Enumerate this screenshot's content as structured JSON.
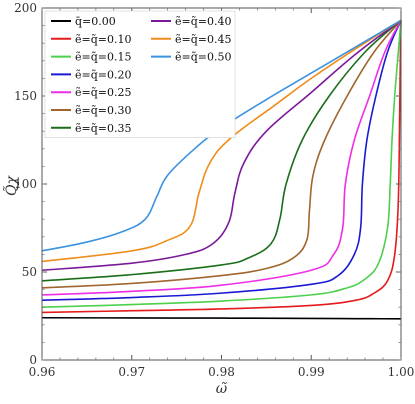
{
  "chart_data": {
    "type": "line",
    "xlabel": "ω̃",
    "ylabel": "Q̃χ",
    "xlim": [
      0.96,
      1.0
    ],
    "ylim": [
      0,
      200
    ],
    "xticks": [
      "0.96",
      "0.97",
      "0.98",
      "0.99",
      "1.00"
    ],
    "yticks": [
      "0",
      "50",
      "100",
      "150",
      "200"
    ],
    "grid": false,
    "legend_position": "top-left",
    "series": [
      {
        "name": "q̄=0.00",
        "color": "#000000",
        "points": [
          [
            0.96,
            24
          ],
          [
            0.97,
            23.9
          ],
          [
            0.98,
            23.8
          ],
          [
            0.99,
            23.6
          ],
          [
            0.995,
            23.5
          ],
          [
            1.0,
            23.4
          ]
        ]
      },
      {
        "name": "ẽ=q̃=0.10",
        "color": "#e41a1c",
        "points": [
          [
            0.96,
            27
          ],
          [
            0.97,
            28
          ],
          [
            0.98,
            29
          ],
          [
            0.99,
            31
          ],
          [
            0.995,
            34
          ],
          [
            0.997,
            38
          ],
          [
            0.9985,
            45
          ],
          [
            0.9993,
            60
          ],
          [
            0.9997,
            90
          ],
          [
            0.99985,
            140
          ],
          [
            0.99995,
            180
          ],
          [
            1.0,
            193
          ]
        ]
      },
      {
        "name": "ẽ=q̃=0.15",
        "color": "#4dd04d",
        "points": [
          [
            0.96,
            30
          ],
          [
            0.97,
            31.5
          ],
          [
            0.98,
            33.5
          ],
          [
            0.99,
            37
          ],
          [
            0.994,
            41
          ],
          [
            0.996,
            46
          ],
          [
            0.9975,
            55
          ],
          [
            0.9985,
            75
          ],
          [
            0.9988,
            100
          ],
          [
            0.999,
            125
          ],
          [
            0.9993,
            150
          ],
          [
            0.9997,
            175
          ],
          [
            1.0,
            193
          ]
        ]
      },
      {
        "name": "ẽ=q̃=0.20",
        "color": "#1a1ad4",
        "points": [
          [
            0.96,
            34
          ],
          [
            0.97,
            35.5
          ],
          [
            0.98,
            38
          ],
          [
            0.99,
            43
          ],
          [
            0.993,
            48
          ],
          [
            0.9948,
            60
          ],
          [
            0.9955,
            75
          ],
          [
            0.9957,
            100
          ],
          [
            0.9962,
            125
          ],
          [
            0.9972,
            150
          ],
          [
            0.9985,
            175
          ],
          [
            1.0,
            193
          ]
        ]
      },
      {
        "name": "ẽ=q̃=0.25",
        "color": "#ee2ee6",
        "points": [
          [
            0.96,
            37
          ],
          [
            0.97,
            39
          ],
          [
            0.98,
            42.5
          ],
          [
            0.99,
            51
          ],
          [
            0.9925,
            60
          ],
          [
            0.9935,
            75
          ],
          [
            0.9938,
            100
          ],
          [
            0.9948,
            125
          ],
          [
            0.9965,
            150
          ],
          [
            0.9982,
            175
          ],
          [
            1.0,
            193
          ]
        ]
      },
      {
        "name": "ẽ=q̃=0.30",
        "color": "#a0662e",
        "points": [
          [
            0.96,
            41
          ],
          [
            0.97,
            43.5
          ],
          [
            0.98,
            48
          ],
          [
            0.985,
            52
          ],
          [
            0.988,
            58
          ],
          [
            0.9895,
            68
          ],
          [
            0.9898,
            85
          ],
          [
            0.9902,
            105
          ],
          [
            0.9915,
            125
          ],
          [
            0.994,
            150
          ],
          [
            0.997,
            175
          ],
          [
            1.0,
            193
          ]
        ]
      },
      {
        "name": "ẽ=q̃=0.35",
        "color": "#1a6e1a",
        "points": [
          [
            0.96,
            45
          ],
          [
            0.97,
            48.5
          ],
          [
            0.98,
            54
          ],
          [
            0.983,
            58
          ],
          [
            0.9855,
            66
          ],
          [
            0.9865,
            80
          ],
          [
            0.9872,
            100
          ],
          [
            0.989,
            125
          ],
          [
            0.992,
            150
          ],
          [
            0.996,
            175
          ],
          [
            1.0,
            193
          ]
        ]
      },
      {
        "name": "ẽ=q̃=0.40",
        "color": "#7a1a9a",
        "points": [
          [
            0.96,
            51
          ],
          [
            0.97,
            55
          ],
          [
            0.976,
            60
          ],
          [
            0.979,
            66
          ],
          [
            0.9808,
            78
          ],
          [
            0.9815,
            95
          ],
          [
            0.9825,
            112
          ],
          [
            0.985,
            130
          ],
          [
            0.99,
            152
          ],
          [
            0.995,
            174
          ],
          [
            1.0,
            193
          ]
        ]
      },
      {
        "name": "ẽ=q̃=0.45",
        "color": "#f08c1a",
        "points": [
          [
            0.96,
            56
          ],
          [
            0.97,
            62
          ],
          [
            0.974,
            68
          ],
          [
            0.9765,
            76
          ],
          [
            0.9775,
            95
          ],
          [
            0.9787,
            112
          ],
          [
            0.981,
            126
          ],
          [
            0.986,
            145
          ],
          [
            0.99,
            160
          ],
          [
            0.995,
            177
          ],
          [
            1.0,
            193
          ]
        ]
      },
      {
        "name": "ẽ=q̃=0.50",
        "color": "#3a92e0",
        "points": [
          [
            0.96,
            62
          ],
          [
            0.965,
            67
          ],
          [
            0.969,
            73
          ],
          [
            0.9715,
            80
          ],
          [
            0.9728,
            93
          ],
          [
            0.974,
            105
          ],
          [
            0.977,
            120
          ],
          [
            0.98,
            132
          ],
          [
            0.985,
            148
          ],
          [
            0.99,
            163
          ],
          [
            0.995,
            178
          ],
          [
            1.0,
            193
          ]
        ]
      }
    ]
  }
}
